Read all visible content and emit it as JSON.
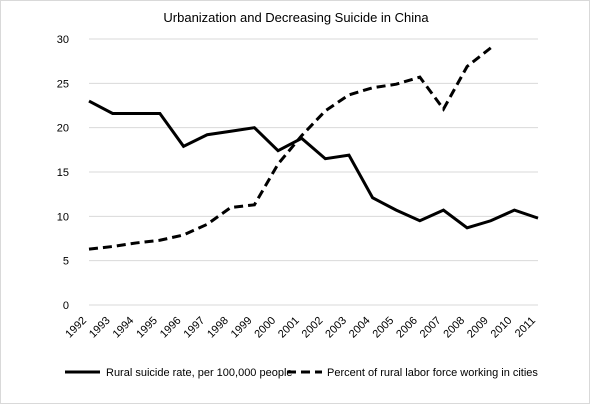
{
  "chart_data": {
    "type": "line",
    "title": "Urbanization and Decreasing Suicide in China",
    "xlabel": "",
    "ylabel": "",
    "categories": [
      "1992",
      "1993",
      "1994",
      "1995",
      "1996",
      "1997",
      "1998",
      "1999",
      "2000",
      "2001",
      "2002",
      "2003",
      "2004",
      "2005",
      "2006",
      "2007",
      "2008",
      "2009",
      "2010",
      "2011"
    ],
    "ylim": [
      0,
      30
    ],
    "yticks": [
      "0",
      "5",
      "10",
      "15",
      "20",
      "25",
      "30"
    ],
    "grid": true,
    "legend_position": "bottom",
    "series": [
      {
        "name": "Rural suicide rate, per 100,000 people",
        "line_style": "solid",
        "color": "#000000",
        "values": [
          23.0,
          21.6,
          21.6,
          21.6,
          17.9,
          19.2,
          19.6,
          20.0,
          17.4,
          18.8,
          16.5,
          16.9,
          12.1,
          10.7,
          9.5,
          10.7,
          8.7,
          9.5,
          10.7,
          9.8
        ]
      },
      {
        "name": "Percent of rural labor force working in cities",
        "line_style": "dashed",
        "color": "#000000",
        "values": [
          6.3,
          6.6,
          7.0,
          7.3,
          7.9,
          9.1,
          11.0,
          11.3,
          15.9,
          19.1,
          21.9,
          23.7,
          24.5,
          24.9,
          25.7,
          22.1,
          26.9,
          29.0,
          null,
          null
        ]
      }
    ]
  }
}
